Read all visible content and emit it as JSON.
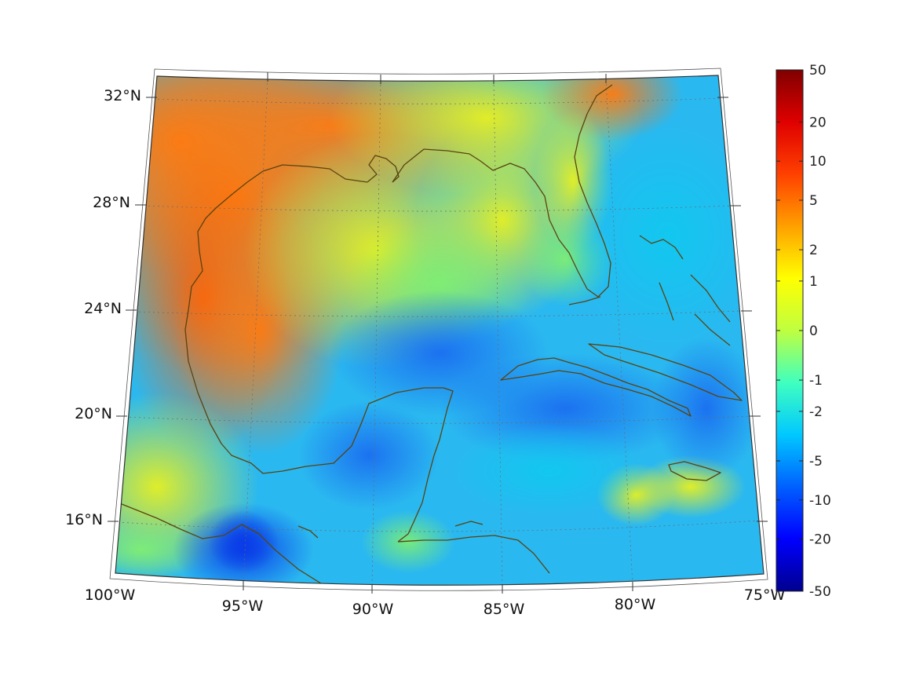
{
  "map": {
    "lat_labels": [
      "32°N",
      "28°N",
      "24°N",
      "20°N",
      "16°N"
    ],
    "lon_labels": [
      "100°W",
      "95°W",
      "90°W",
      "85°W",
      "80°W",
      "75°W"
    ]
  },
  "colorbar": {
    "labels": [
      "50",
      "20",
      "10",
      "5",
      "2",
      "1",
      "0",
      "-1",
      "-2",
      "-5",
      "-10",
      "-20",
      "-50"
    ],
    "colors": [
      "#00008f",
      "#0000ff",
      "#0060ff",
      "#00c8ff",
      "#40ffbf",
      "#bfff40",
      "#ffff00",
      "#ffa000",
      "#ff4000",
      "#df0000",
      "#800000"
    ]
  },
  "colors": {
    "coastline": "#5a4310",
    "frame": "#333333"
  }
}
